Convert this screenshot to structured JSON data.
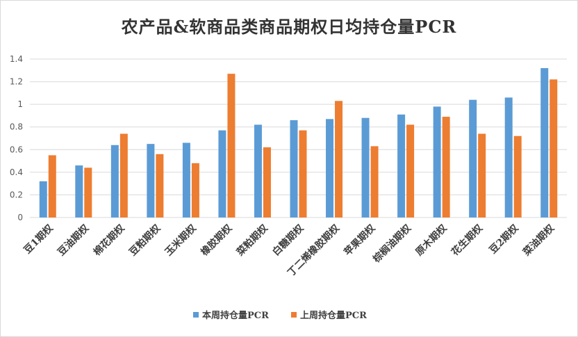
{
  "chart_data": {
    "type": "bar",
    "title": "农产品&软商品类商品期权日均持仓量PCR",
    "categories": [
      "豆1期权",
      "豆油期权",
      "棉花期权",
      "豆粕期权",
      "玉米期权",
      "橡胶期权",
      "菜粕期权",
      "白糖期权",
      "丁二烯橡胶期权",
      "苹果期权",
      "棕榈油期权",
      "原木期权",
      "花生期权",
      "豆2期权",
      "菜油期权"
    ],
    "series": [
      {
        "name": "本周持仓量PCR",
        "color": "#5b9bd5",
        "values": [
          0.32,
          0.46,
          0.64,
          0.65,
          0.66,
          0.77,
          0.82,
          0.86,
          0.87,
          0.88,
          0.91,
          0.98,
          1.04,
          1.06,
          1.32
        ]
      },
      {
        "name": "上周持仓量PCR",
        "color": "#ed7d31",
        "values": [
          0.55,
          0.44,
          0.74,
          0.56,
          0.48,
          1.27,
          0.62,
          0.77,
          1.03,
          0.63,
          0.82,
          0.89,
          0.74,
          0.72,
          1.22
        ]
      }
    ],
    "yticks": [
      "0",
      "0.2",
      "0.4",
      "0.6",
      "0.8",
      "1",
      "1.2",
      "1.4"
    ],
    "ylim": [
      0,
      1.4
    ],
    "grid": true,
    "legend_position": "bottom"
  }
}
